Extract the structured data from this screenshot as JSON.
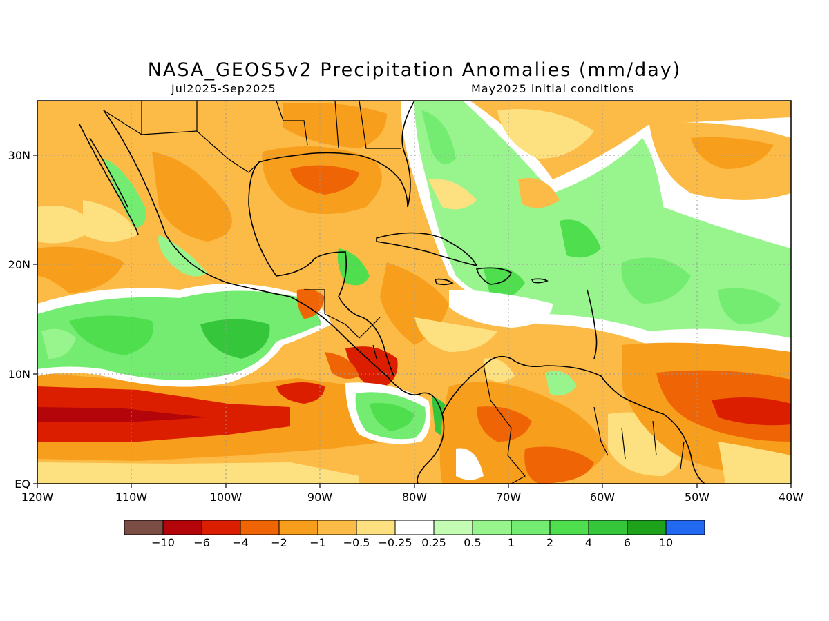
{
  "title": "NASA_GEOS5v2 Precipitation Anomalies (mm/day)",
  "subtitle_left": "Jul2025-Sep2025",
  "subtitle_right": "May2025 initial conditions",
  "map": {
    "lon_range": [
      -120,
      -40
    ],
    "lat_range": [
      0,
      35
    ],
    "x_ticks": [
      "120W",
      "110W",
      "100W",
      "90W",
      "80W",
      "70W",
      "60W",
      "50W",
      "40W"
    ],
    "y_ticks": [
      "EQ",
      "10N",
      "20N",
      "30N"
    ],
    "grid": "dotted",
    "colors": {
      "cat_dark_brown": "#7a4d45",
      "cat_dark_red": "#b4050a",
      "cat_red": "#dc1e00",
      "cat_orange_red": "#ef6405",
      "cat_orange": "#f79e1c",
      "cat_light_orange": "#fbbb46",
      "cat_yellow": "#fde180",
      "cat_white": "#ffffff",
      "cat_pale_green": "#c4fcb4",
      "cat_light_green": "#98f58e",
      "cat_green": "#74ec72",
      "cat_bright_green": "#4ede4e",
      "cat_mid_green": "#36c63b",
      "cat_dark_green": "#1ea21c",
      "cat_blue": "#2169f0"
    }
  },
  "colorbar": {
    "colors": [
      "#7a4d45",
      "#b4050a",
      "#dc1e00",
      "#ef6405",
      "#f79e1c",
      "#fbbb46",
      "#fde180",
      "#ffffff",
      "#c4fcb4",
      "#98f58e",
      "#74ec72",
      "#4ede4e",
      "#36c63b",
      "#1ea21c",
      "#2169f0"
    ],
    "labels": [
      "-10",
      "-6",
      "-4",
      "-2",
      "-1",
      "-0.5",
      "-0.25",
      "0.25",
      "0.5",
      "1",
      "2",
      "4",
      "6",
      "10"
    ]
  }
}
